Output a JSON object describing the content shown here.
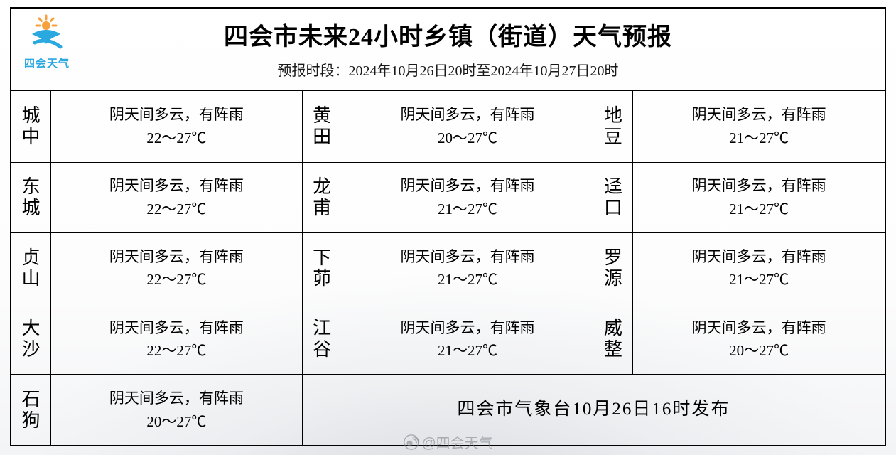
{
  "header": {
    "title": "四会市未来24小时乡镇（街道）天气预报",
    "subtitle": "预报时段：2024年10月26日20时至2024年10月27日20时",
    "logo_text": "四会天气",
    "logo_colors": {
      "sun": "#f7a13c",
      "wave": "#2aa8e0"
    }
  },
  "table": {
    "columns": 3,
    "rows": 5,
    "name_fontsize": 26,
    "forecast_fontsize": 21,
    "border_color": "#000000",
    "cells": [
      {
        "row": 0,
        "col": 0,
        "name": "城中",
        "weather": "阴天间多云，有阵雨",
        "temp": "22～27℃"
      },
      {
        "row": 0,
        "col": 1,
        "name": "黄田",
        "weather": "阴天间多云，有阵雨",
        "temp": "20～27℃"
      },
      {
        "row": 0,
        "col": 2,
        "name": "地豆",
        "weather": "阴天间多云，有阵雨",
        "temp": "21～27℃"
      },
      {
        "row": 1,
        "col": 0,
        "name": "东城",
        "weather": "阴天间多云，有阵雨",
        "temp": "22～27℃"
      },
      {
        "row": 1,
        "col": 1,
        "name": "龙甫",
        "weather": "阴天间多云，有阵雨",
        "temp": "21～27℃"
      },
      {
        "row": 1,
        "col": 2,
        "name": "迳口",
        "weather": "阴天间多云，有阵雨",
        "temp": "21～27℃"
      },
      {
        "row": 2,
        "col": 0,
        "name": "贞山",
        "weather": "阴天间多云，有阵雨",
        "temp": "22～27℃"
      },
      {
        "row": 2,
        "col": 1,
        "name": "下茆",
        "weather": "阴天间多云，有阵雨",
        "temp": "21～27℃"
      },
      {
        "row": 2,
        "col": 2,
        "name": "罗源",
        "weather": "阴天间多云，有阵雨",
        "temp": "21～27℃"
      },
      {
        "row": 3,
        "col": 0,
        "name": "大沙",
        "weather": "阴天间多云，有阵雨",
        "temp": "22～27℃"
      },
      {
        "row": 3,
        "col": 1,
        "name": "江谷",
        "weather": "阴天间多云，有阵雨",
        "temp": "21～27℃"
      },
      {
        "row": 3,
        "col": 2,
        "name": "威整",
        "weather": "阴天间多云，有阵雨",
        "temp": "20～27℃"
      },
      {
        "row": 4,
        "col": 0,
        "name": "石狗",
        "weather": "阴天间多云，有阵雨",
        "temp": "20～27℃"
      }
    ],
    "footer": "四会市气象台10月26日16时发布"
  },
  "watermark": {
    "text": "@四会天气",
    "icon": "weibo"
  },
  "styling": {
    "background_color": "#ffffff",
    "title_fontsize": 34,
    "subtitle_fontsize": 20,
    "footer_fontsize": 25,
    "font_family_serif": "SimSun"
  }
}
